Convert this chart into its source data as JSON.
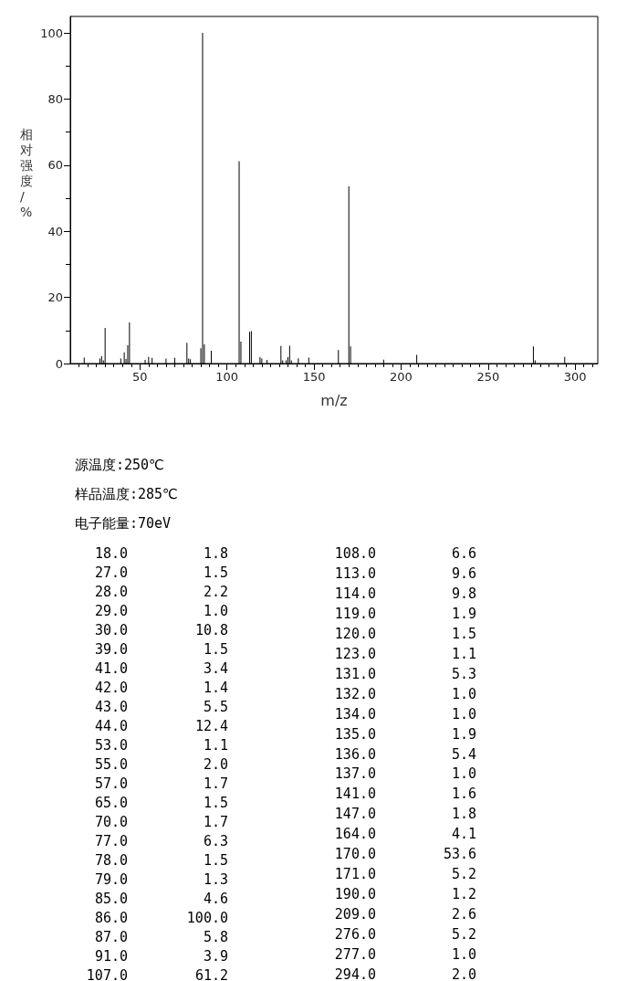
{
  "chart_data": [
    {
      "type": "bar",
      "xlabel": "m/z",
      "ylabel": "相对强度/%",
      "x": [
        18,
        27,
        28,
        29,
        30,
        39,
        41,
        42,
        43,
        44,
        53,
        55,
        57,
        65,
        70,
        77,
        78,
        79,
        85,
        86,
        87,
        91,
        107,
        108,
        113,
        114,
        119,
        120,
        123,
        131,
        132,
        134,
        135,
        136,
        137,
        141,
        147,
        164,
        170,
        171,
        190,
        209,
        276,
        277,
        294
      ],
      "values": [
        1.8,
        1.5,
        2.2,
        1.0,
        10.8,
        1.5,
        3.4,
        1.4,
        5.5,
        12.4,
        1.1,
        2.0,
        1.7,
        1.5,
        1.7,
        6.3,
        1.5,
        1.3,
        4.6,
        100.0,
        5.8,
        3.9,
        61.2,
        6.6,
        9.6,
        9.8,
        1.9,
        1.5,
        1.1,
        5.3,
        1.0,
        1.0,
        1.9,
        5.4,
        1.0,
        1.6,
        1.8,
        4.1,
        53.6,
        5.2,
        1.2,
        2.6,
        5.2,
        1.0,
        2.0
      ],
      "color": "#000000",
      "xlim": [
        10,
        313
      ],
      "xticks": [
        50,
        100,
        150,
        200,
        250,
        300
      ],
      "ylim": [
        0,
        105
      ],
      "yticks": [
        0,
        20,
        40,
        60,
        80,
        100
      ],
      "grid": false,
      "annotations": [
        "源温度:250℃",
        "样品温度:285℃",
        "电子能量:70eV"
      ]
    },
    {
      "type": "other",
      "categories": [
        "18.0",
        "27.0",
        "28.0",
        "29.0",
        "30.0",
        "39.0",
        "41.0",
        "42.0",
        "43.0",
        "44.0",
        "53.0",
        "55.0",
        "57.0",
        "65.0",
        "70.0",
        "77.0",
        "78.0",
        "79.0",
        "85.0",
        "86.0",
        "87.0",
        "91.0",
        "107.0",
        "108.0",
        "113.0",
        "114.0",
        "119.0",
        "120.0",
        "123.0",
        "131.0",
        "132.0",
        "134.0",
        "135.0",
        "136.0",
        "137.0",
        "141.0",
        "147.0",
        "164.0",
        "170.0",
        "171.0",
        "190.0",
        "209.0",
        "276.0",
        "277.0",
        "294.0"
      ],
      "value_labels": [
        "1.8",
        "1.5",
        "2.2",
        "1.0",
        "10.8",
        "1.5",
        "3.4",
        "1.4",
        "5.5",
        "12.4",
        "1.1",
        "2.0",
        "1.7",
        "1.5",
        "1.7",
        "6.3",
        "1.5",
        "1.3",
        "4.6",
        "100.0",
        "5.8",
        "3.9",
        "61.2",
        "6.6",
        "9.6",
        "9.8",
        "1.9",
        "1.5",
        "1.1",
        "5.3",
        "1.0",
        "1.0",
        "1.9",
        "5.4",
        "1.0",
        "1.6",
        "1.8",
        "4.1",
        "53.6",
        "5.2",
        "1.2",
        "2.6",
        "5.2",
        "1.0",
        "2.0"
      ]
    }
  ]
}
